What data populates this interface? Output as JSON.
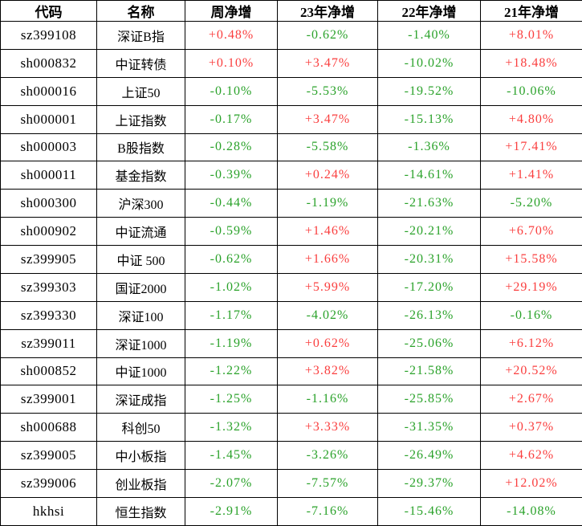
{
  "colors": {
    "positive": "#fa3e3e",
    "negative": "#2aa22a",
    "border": "#000000",
    "text": "#000000",
    "background": "#ffffff"
  },
  "chart_data": {
    "type": "table",
    "title": "",
    "columns": [
      "代码",
      "名称",
      "周净增",
      "23年净增",
      "22年净增",
      "21年净增"
    ],
    "value_column_names": [
      "weekly-change",
      "y2023-change",
      "y2022-change",
      "y2021-change"
    ],
    "rows": [
      {
        "code": "sz399108",
        "name": "深证B指",
        "values": [
          "+0.48%",
          "-0.62%",
          "-1.40%",
          "+8.01%"
        ]
      },
      {
        "code": "sh000832",
        "name": "中证转债",
        "values": [
          "+0.10%",
          "+3.47%",
          "-10.02%",
          "+18.48%"
        ]
      },
      {
        "code": "sh000016",
        "name": "上证50",
        "values": [
          "-0.10%",
          "-5.53%",
          "-19.52%",
          "-10.06%"
        ]
      },
      {
        "code": "sh000001",
        "name": "上证指数",
        "values": [
          "-0.17%",
          "+3.47%",
          "-15.13%",
          "+4.80%"
        ]
      },
      {
        "code": "sh000003",
        "name": "B股指数",
        "values": [
          "-0.28%",
          "-5.58%",
          "-1.36%",
          "+17.41%"
        ]
      },
      {
        "code": "sh000011",
        "name": "基金指数",
        "values": [
          "-0.39%",
          "+0.24%",
          "-14.61%",
          "+1.41%"
        ]
      },
      {
        "code": "sh000300",
        "name": "沪深300",
        "values": [
          "-0.44%",
          "-1.19%",
          "-21.63%",
          "-5.20%"
        ]
      },
      {
        "code": "sh000902",
        "name": "中证流通",
        "values": [
          "-0.59%",
          "+1.46%",
          "-20.21%",
          "+6.70%"
        ]
      },
      {
        "code": "sz399905",
        "name": "中证 500",
        "values": [
          "-0.62%",
          "+1.66%",
          "-20.31%",
          "+15.58%"
        ]
      },
      {
        "code": "sz399303",
        "name": "国证2000",
        "values": [
          "-1.02%",
          "+5.99%",
          "-17.20%",
          "+29.19%"
        ]
      },
      {
        "code": "sz399330",
        "name": "深证100",
        "values": [
          "-1.17%",
          "-4.02%",
          "-26.13%",
          "-0.16%"
        ]
      },
      {
        "code": "sz399011",
        "name": "深证1000",
        "values": [
          "-1.19%",
          "+0.62%",
          "-25.06%",
          "+6.12%"
        ]
      },
      {
        "code": "sh000852",
        "name": "中证1000",
        "values": [
          "-1.22%",
          "+3.82%",
          "-21.58%",
          "+20.52%"
        ]
      },
      {
        "code": "sz399001",
        "name": "深证成指",
        "values": [
          "-1.25%",
          "-1.16%",
          "-25.85%",
          "+2.67%"
        ]
      },
      {
        "code": "sh000688",
        "name": "科创50",
        "values": [
          "-1.32%",
          "+3.33%",
          "-31.35%",
          "+0.37%"
        ]
      },
      {
        "code": "sz399005",
        "name": "中小板指",
        "values": [
          "-1.45%",
          "-3.26%",
          "-26.49%",
          "+4.62%"
        ]
      },
      {
        "code": "sz399006",
        "name": "创业板指",
        "values": [
          "-2.07%",
          "-7.57%",
          "-29.37%",
          "+12.02%"
        ]
      },
      {
        "code": "hkhsi",
        "name": "恒生指数",
        "values": [
          "-2.91%",
          "-7.16%",
          "-15.46%",
          "-14.08%"
        ]
      }
    ]
  }
}
